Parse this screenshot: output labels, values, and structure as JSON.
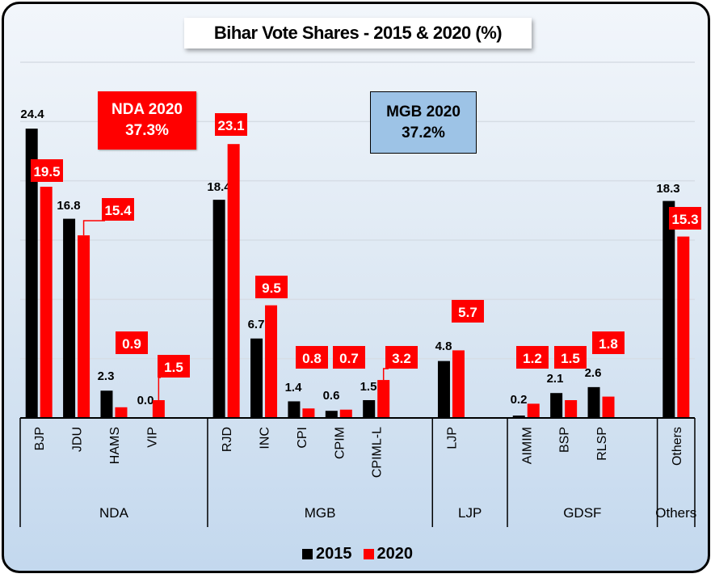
{
  "chart_data": {
    "type": "bar",
    "title": "Bihar Vote Shares - 2015 & 2020 (%)",
    "categories": [
      "BJP",
      "JDU",
      "HAMS",
      "VIP",
      "",
      "RJD",
      "INC",
      "CPI",
      "CPIM",
      "CPIML-L",
      "",
      "LJP",
      "",
      "AIMIM",
      "BSP",
      "RLSP",
      "",
      "Others"
    ],
    "groups": [
      {
        "name": "NDA",
        "span": 5
      },
      {
        "name": "MGB",
        "span": 6
      },
      {
        "name": "LJP",
        "span": 2
      },
      {
        "name": "GDSF",
        "span": 4
      },
      {
        "name": "Others",
        "span": 1
      }
    ],
    "series": [
      {
        "name": "2015",
        "color": "#000000",
        "values": [
          24.4,
          16.8,
          2.3,
          0.0,
          null,
          18.4,
          6.7,
          1.4,
          0.6,
          1.5,
          null,
          4.8,
          null,
          0.2,
          2.1,
          2.6,
          null,
          18.3
        ],
        "labels": [
          "24.4",
          "16.8",
          "2.3",
          "0.0",
          "",
          "18.4",
          "6.7",
          "1.4",
          "0.6",
          "1.5",
          "",
          "4.8",
          "",
          "0.2",
          "2.1",
          "2.6",
          "",
          "18.3"
        ]
      },
      {
        "name": "2020",
        "color": "#ff0000",
        "values": [
          19.5,
          15.4,
          0.9,
          1.5,
          null,
          23.1,
          9.5,
          0.8,
          0.7,
          3.2,
          null,
          5.7,
          null,
          1.2,
          1.5,
          1.8,
          null,
          15.3
        ],
        "labels": [
          "19.5",
          "15.4",
          "0.9",
          "1.5",
          "",
          "23.1",
          "9.5",
          "0.8",
          "0.7",
          "3.2",
          "",
          "5.7",
          "",
          "1.2",
          "1.5",
          "1.8",
          "",
          "15.3"
        ]
      }
    ],
    "ylim": [
      0,
      30
    ],
    "grid": true,
    "legend": "bottom",
    "annotations": [
      {
        "line1": "NDA 2020",
        "line2": "37.3%"
      },
      {
        "line1": "MGB 2020",
        "line2": "37.2%"
      }
    ]
  }
}
